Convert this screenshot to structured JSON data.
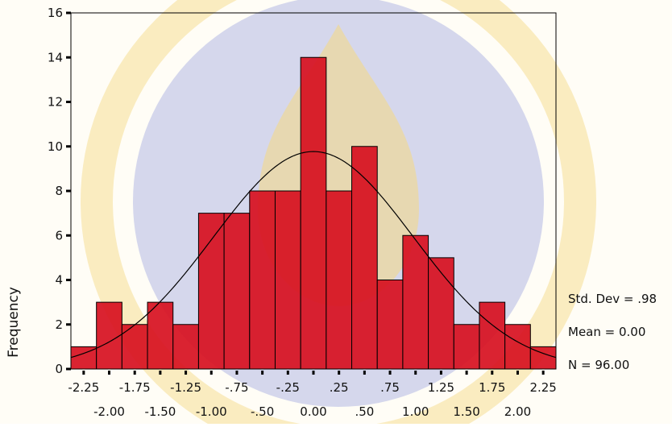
{
  "chart_data": {
    "type": "histogram",
    "y_label": "Frequency",
    "bins": [
      -2.375,
      -2.125,
      -1.875,
      -1.625,
      -1.375,
      -1.125,
      -0.875,
      -0.625,
      -0.375,
      -0.125,
      0.125,
      0.375,
      0.625,
      0.875,
      1.125,
      1.375,
      1.625,
      1.875,
      2.125,
      2.375
    ],
    "values": [
      1,
      3,
      2,
      3,
      2,
      7,
      7,
      8,
      8,
      14,
      8,
      10,
      4,
      6,
      5,
      2,
      3,
      2,
      1
    ],
    "color": "#d7101f",
    "xlim": [
      -2.375,
      2.375
    ],
    "xticks": [
      {
        "value": -2.25,
        "label": "-2.25"
      },
      {
        "value": -2.0,
        "label": "-2.00"
      },
      {
        "value": -1.75,
        "label": "-1.75"
      },
      {
        "value": -1.5,
        "label": "-1.50"
      },
      {
        "value": -1.25,
        "label": "-1.25"
      },
      {
        "value": -1.0,
        "label": "-1.00"
      },
      {
        "value": -0.75,
        "label": "-.75"
      },
      {
        "value": -0.5,
        "label": "-.50"
      },
      {
        "value": -0.25,
        "label": "-.25"
      },
      {
        "value": 0,
        "label": "0.00"
      },
      {
        "value": 0.25,
        "label": ".25"
      },
      {
        "value": 0.5,
        "label": ".50"
      },
      {
        "value": 0.75,
        "label": ".75"
      },
      {
        "value": 1.0,
        "label": "1.00"
      },
      {
        "value": 1.25,
        "label": "1.25"
      },
      {
        "value": 1.5,
        "label": "1.50"
      },
      {
        "value": 1.75,
        "label": "1.75"
      },
      {
        "value": 2.0,
        "label": "2.00"
      },
      {
        "value": 2.25,
        "label": "2.25"
      }
    ],
    "ylim": [
      0,
      16
    ],
    "yticks": [
      0,
      2,
      4,
      6,
      8,
      10,
      12,
      14,
      16
    ],
    "normal_curve": {
      "std_dev": {
        "value": 0.98,
        "label": "Std. Dev = .98"
      },
      "mean": {
        "value": 0,
        "label": "Mean = 0.00"
      },
      "n": {
        "value": 96,
        "label": "N = 96.00"
      }
    }
  }
}
